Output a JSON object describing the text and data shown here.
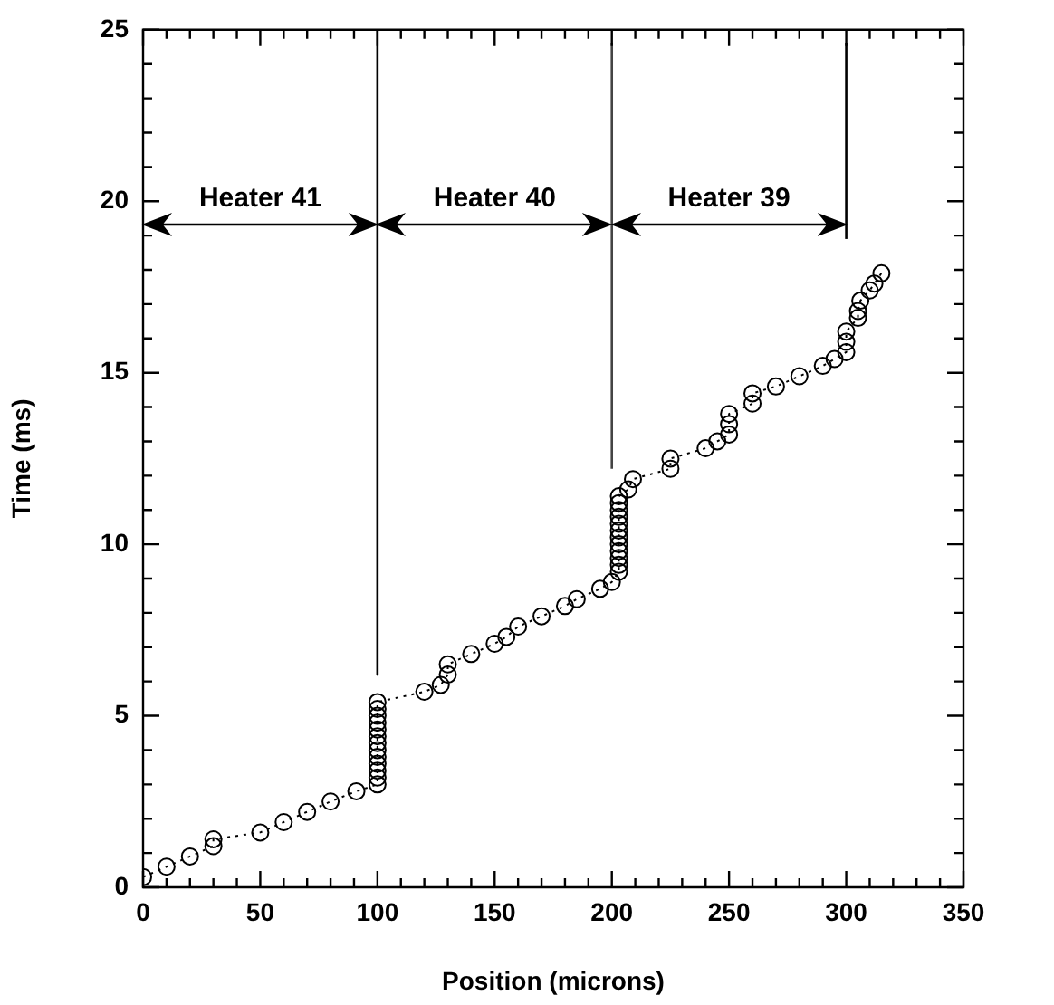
{
  "chart_data": {
    "type": "line",
    "xlabel": "Position (microns)",
    "ylabel": "Time (ms)",
    "xlim": [
      0,
      350
    ],
    "ylim": [
      0,
      25
    ],
    "xticks": [
      0,
      {
        "value": 10,
        "label": null
      },
      {
        "value": 20,
        "label": null
      },
      {
        "value": 30,
        "label": null
      },
      {
        "value": 40,
        "label": null
      },
      50,
      {
        "value": 60,
        "label": null
      },
      {
        "value": 70,
        "label": null
      },
      {
        "value": 80,
        "label": null
      },
      {
        "value": 90,
        "label": null
      },
      100,
      {
        "value": 110,
        "label": null
      },
      {
        "value": 120,
        "label": null
      },
      {
        "value": 130,
        "label": null
      },
      {
        "value": 140,
        "label": null
      },
      150,
      {
        "value": 160,
        "label": null
      },
      {
        "value": 170,
        "label": null
      },
      {
        "value": 180,
        "label": null
      },
      {
        "value": 190,
        "label": null
      },
      200,
      {
        "value": 210,
        "label": null
      },
      {
        "value": 220,
        "label": null
      },
      {
        "value": 230,
        "label": null
      },
      {
        "value": 240,
        "label": null
      },
      250,
      {
        "value": 260,
        "label": null
      },
      {
        "value": 270,
        "label": null
      },
      {
        "value": 280,
        "label": null
      },
      {
        "value": 290,
        "label": null
      },
      300,
      {
        "value": 310,
        "label": null
      },
      {
        "value": 320,
        "label": null
      },
      {
        "value": 330,
        "label": null
      },
      {
        "value": 340,
        "label": null
      },
      350
    ],
    "yticks": [
      0,
      {
        "value": 1,
        "label": null
      },
      {
        "value": 2,
        "label": null
      },
      {
        "value": 3,
        "label": null
      },
      {
        "value": 4,
        "label": null
      },
      5,
      {
        "value": 6,
        "label": null
      },
      {
        "value": 7,
        "label": null
      },
      {
        "value": 8,
        "label": null
      },
      {
        "value": 9,
        "label": null
      },
      10,
      {
        "value": 11,
        "label": null
      },
      {
        "value": 12,
        "label": null
      },
      {
        "value": 13,
        "label": null
      },
      {
        "value": 14,
        "label": null
      },
      15,
      {
        "value": 16,
        "label": null
      },
      {
        "value": 17,
        "label": null
      },
      {
        "value": 18,
        "label": null
      },
      {
        "value": 19,
        "label": null
      },
      20,
      {
        "value": 21,
        "label": null
      },
      {
        "value": 22,
        "label": null
      },
      {
        "value": 23,
        "label": null
      },
      {
        "value": 24,
        "label": null
      },
      25
    ],
    "legend": false,
    "series": [
      {
        "color": "#000000",
        "marker": "circle",
        "line_style": "dotted",
        "x": [
          0,
          10,
          20,
          30,
          30,
          50,
          60,
          70,
          80,
          91,
          100,
          100,
          100,
          100,
          100,
          100,
          100,
          100,
          100,
          100,
          100,
          100,
          100,
          120,
          127,
          130,
          130,
          140,
          150,
          155,
          160,
          170,
          180,
          185,
          195,
          200,
          203,
          203,
          203,
          203,
          203,
          203,
          203,
          203,
          203,
          203,
          203,
          203,
          207,
          209,
          225,
          225,
          240,
          245,
          250,
          250,
          250,
          260,
          260,
          270,
          280,
          290,
          295,
          300,
          300,
          300,
          305,
          305,
          306,
          310,
          312,
          315
        ],
        "values": [
          0.3,
          0.6,
          0.9,
          1.2,
          1.4,
          1.6,
          1.9,
          2.2,
          2.5,
          2.8,
          3.0,
          3.2,
          3.4,
          3.6,
          3.8,
          4.0,
          4.2,
          4.4,
          4.6,
          4.8,
          5.0,
          5.2,
          5.4,
          5.7,
          5.9,
          6.2,
          6.5,
          6.8,
          7.1,
          7.3,
          7.6,
          7.9,
          8.2,
          8.4,
          8.7,
          8.9,
          9.2,
          9.4,
          9.6,
          9.8,
          10.0,
          10.2,
          10.4,
          10.6,
          10.8,
          11.0,
          11.2,
          11.4,
          11.6,
          11.9,
          12.2,
          12.5,
          12.8,
          13.0,
          13.2,
          13.5,
          13.8,
          14.1,
          14.4,
          14.6,
          14.9,
          15.2,
          15.4,
          15.6,
          15.9,
          16.2,
          16.6,
          16.8,
          17.1,
          17.4,
          17.6,
          17.9
        ]
      },
      {
        "color": "#000000",
        "marker": "none",
        "line_style": "solid",
        "x": [
          100,
          100
        ],
        "values": [
          25,
          6.2
        ]
      },
      {
        "color": "#444444",
        "marker": "none",
        "line_style": "solid",
        "x": [
          200,
          200
        ],
        "values": [
          12.2,
          24.6
        ]
      },
      {
        "color": "#000000",
        "marker": "none",
        "line_style": "solid",
        "x": [
          300,
          300
        ],
        "values": [
          18.9,
          24.6
        ]
      }
    ],
    "annotations": [
      "Heater 41",
      "Heater 40",
      "Heater 39"
    ]
  }
}
